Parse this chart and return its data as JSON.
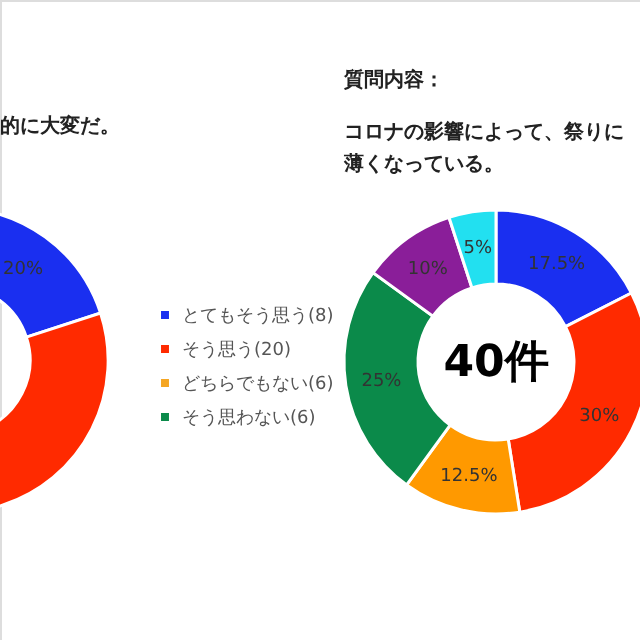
{
  "chart_data": [
    {
      "type": "donut",
      "title": "的に大変だ。",
      "categories": [
        "とてもそう思う(8)",
        "そう思う(20)",
        "どちらでもない(6)",
        "そう思わない(6)"
      ],
      "values": [
        20,
        50,
        null,
        null
      ],
      "colors": [
        "#1a2ff0",
        "#ff2a00",
        "#f5a623",
        "#0b8a4a"
      ],
      "value_labels": [
        "20%",
        null,
        null,
        null
      ],
      "legend": "right"
    },
    {
      "type": "donut",
      "title": "質問内容：",
      "subtitle": "コロナの影響によって、祭りに薄くなっている。",
      "categories": [
        null,
        null,
        null,
        null,
        null,
        null
      ],
      "values": [
        17.5,
        30,
        12.5,
        25,
        10,
        5
      ],
      "colors": [
        "#1a2ff0",
        "#ff2a00",
        "#ff9900",
        "#0b8a4a",
        "#8a1e99",
        "#22e0f0"
      ],
      "value_labels": [
        "17.5%",
        "30%",
        "12.5%",
        "25%",
        "10%",
        "5%"
      ],
      "annotations": [
        "40件"
      ]
    }
  ]
}
